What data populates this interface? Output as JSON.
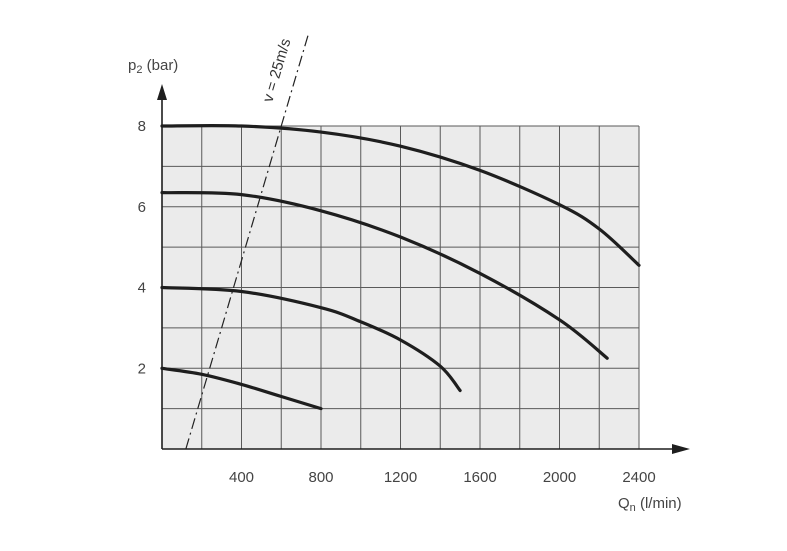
{
  "chart_data": {
    "type": "line",
    "title": "",
    "ylabel": {
      "main": "p",
      "sub": "2",
      "unit": " (bar)"
    },
    "xlabel": {
      "main": "Q",
      "sub": "n",
      "unit": " (l/min)"
    },
    "xlim": [
      0,
      2400
    ],
    "ylim": [
      0,
      8
    ],
    "x_ticks": [
      400,
      800,
      1200,
      1600,
      2000,
      2400
    ],
    "y_ticks": [
      2,
      4,
      6,
      8
    ],
    "grid": true,
    "grid_x_step": 200,
    "grid_y_step": 1,
    "background_color": "#ebebeb",
    "series": [
      {
        "x": [
          0,
          200,
          400,
          600,
          800
        ],
        "y": [
          2.0,
          1.85,
          1.6,
          1.3,
          1.0
        ]
      },
      {
        "x": [
          0,
          400,
          800,
          1000,
          1200,
          1400,
          1500
        ],
        "y": [
          4.0,
          3.9,
          3.5,
          3.15,
          2.7,
          2.05,
          1.45
        ]
      },
      {
        "x": [
          0,
          400,
          800,
          1200,
          1600,
          2000,
          2240
        ],
        "y": [
          6.35,
          6.3,
          5.9,
          5.25,
          4.35,
          3.2,
          2.25
        ]
      },
      {
        "x": [
          0,
          400,
          800,
          1200,
          1600,
          2000,
          2200,
          2400
        ],
        "y": [
          8.0,
          8.0,
          7.85,
          7.5,
          6.9,
          6.05,
          5.45,
          4.55
        ]
      }
    ],
    "reference_line": {
      "label": "v = 25m/s",
      "points": [
        [
          120,
          0
        ],
        [
          600,
          8
        ]
      ]
    }
  }
}
